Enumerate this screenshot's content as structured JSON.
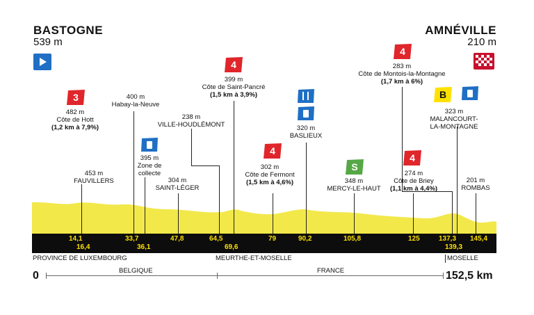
{
  "start": {
    "city": "BASTOGNE",
    "altitude": "539 m"
  },
  "finish": {
    "city": "AMNÉVILLE",
    "altitude": "210 m"
  },
  "total": {
    "start_km": "0",
    "end_km": "152,5 km"
  },
  "colors": {
    "profile": "#f2e84a",
    "climb": "#e0262b",
    "feed": "#1f6fc5",
    "sprint": "#55a845",
    "bonus": "#ffe100",
    "start_flag": "#1f6fc5",
    "bar": "#0d0d0d"
  },
  "points": [
    {
      "alt": "482 m",
      "name": "Côte de Hott",
      "detail": "(1,2 km à 7,9%)",
      "badge": "3"
    },
    {
      "alt": "453 m",
      "name": "FAUVILLERS",
      "detail": ""
    },
    {
      "alt": "400 m",
      "name": "Habay-la-Neuve",
      "detail": ""
    },
    {
      "alt": "395 m",
      "name": "Zone de collecte",
      "detail": ""
    },
    {
      "alt": "304 m",
      "name": "SAINT-LÉGER",
      "detail": ""
    },
    {
      "alt": "238 m",
      "name": "VILLE-HOUDLÉMONT",
      "detail": ""
    },
    {
      "alt": "399 m",
      "name": "Côte de Saint-Pancré",
      "detail": "(1,5 km à 3,9%)",
      "badge": "4"
    },
    {
      "alt": "302 m",
      "name": "Côte de Fermont",
      "detail": "(1,5 km à 4,6%)",
      "badge": "4"
    },
    {
      "alt": "320 m",
      "name": "BASLIEUX",
      "detail": ""
    },
    {
      "alt": "348 m",
      "name": "MERCY-LE-HAUT",
      "detail": "",
      "badge": "S"
    },
    {
      "alt": "274 m",
      "name": "Côte de Briey",
      "detail": "(1,1 km à 4,4%)",
      "badge": "4"
    },
    {
      "alt": "283 m",
      "name": "Côte de Montois-la-Montagne",
      "detail": "(1,7 km à 6%)",
      "badge": "4"
    },
    {
      "alt": "323 m",
      "name": "MALANCOURT-LA-MONTAGNE",
      "detail": "",
      "badge": "B"
    },
    {
      "alt": "201 m",
      "name": "ROMBAS",
      "detail": ""
    }
  ],
  "km_top": [
    "14,1",
    "33,7",
    "47,8",
    "64,5",
    "79",
    "90,2",
    "105,8",
    "125",
    "137,3",
    "145,4"
  ],
  "km_bottom": [
    "16,4",
    "36,1",
    "69,6",
    "139,3"
  ],
  "regions": {
    "r1": "PROVINCE DE LUXEMBOURG",
    "r2": "MEURTHE-ET-MOSELLE",
    "r3": "MOSELLE"
  },
  "countries": {
    "c1": "BELGIQUE",
    "c2": "FRANCE"
  }
}
